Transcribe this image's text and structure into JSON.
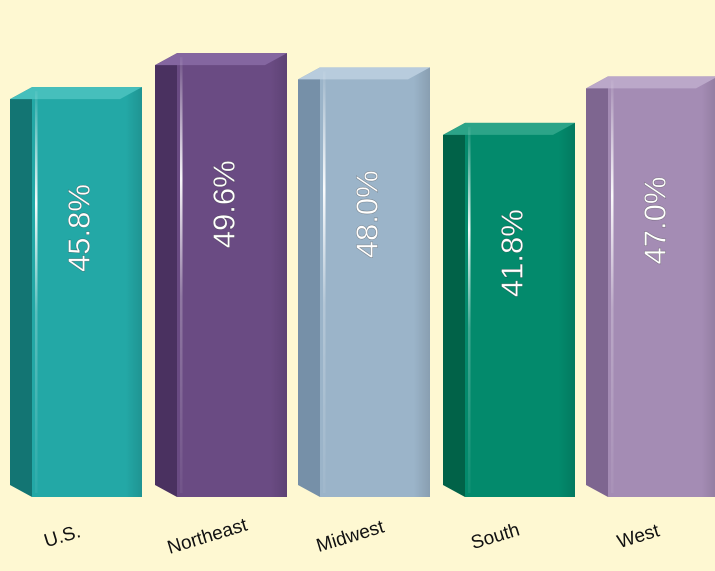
{
  "chart_data": {
    "type": "bar",
    "categories": [
      "U.S.",
      "Northeast",
      "Midwest",
      "South",
      "West"
    ],
    "values": [
      45.8,
      49.6,
      48.0,
      41.8,
      47.0
    ],
    "value_labels": [
      "45.8%",
      "49.6%",
      "48.0%",
      "41.8%",
      "47.0%"
    ],
    "ylim": [
      0,
      52
    ],
    "grid": false,
    "legend": "none",
    "colors": {
      "background": "#FEF8D2",
      "bars": [
        {
          "front": "#23A8A6",
          "side": "#137573",
          "top": "#46BFBC"
        },
        {
          "front": "#6A4B83",
          "side": "#4A3160",
          "top": "#8466A0"
        },
        {
          "front": "#9BB4C9",
          "side": "#7690A8",
          "top": "#B8CCDD"
        },
        {
          "front": "#038A6C",
          "side": "#016248",
          "top": "#2CA488"
        },
        {
          "front": "#A48CB4",
          "side": "#7E6690",
          "top": "#BBA8C9"
        }
      ]
    }
  }
}
